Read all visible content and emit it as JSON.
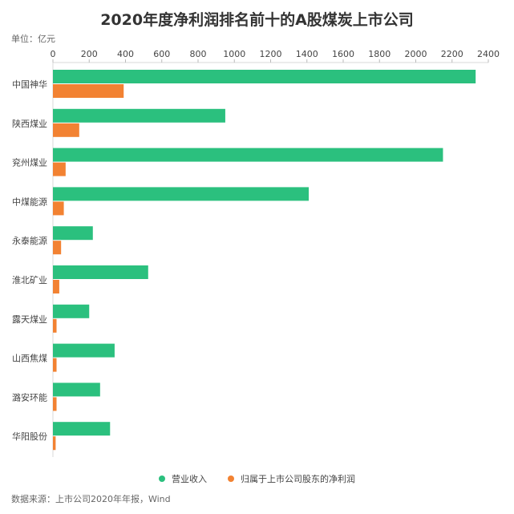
{
  "unit": "单位：亿元",
  "source": "数据来源：上市公司2020年年报，Wind",
  "colors": {
    "revenue": "#2bc07e",
    "profit": "#f28232"
  },
  "chart_data": {
    "type": "bar",
    "orientation": "horizontal",
    "title": "2020年度净利润排名前十的A股煤炭上市公司",
    "categories": [
      "中国神华",
      "陕西煤业",
      "兖州煤业",
      "中煤能源",
      "永泰能源",
      "淮北矿业",
      "露天煤业",
      "山西焦煤",
      "潞安环能",
      "华阳股份"
    ],
    "series": [
      {
        "name": "营业收入",
        "values": [
          2330,
          950,
          2150,
          1410,
          220,
          525,
          200,
          340,
          260,
          315
        ]
      },
      {
        "name": "归属于上市公司股东的净利润",
        "values": [
          390,
          145,
          70,
          60,
          45,
          35,
          20,
          20,
          20,
          15
        ]
      }
    ],
    "xlim": [
      0,
      2400
    ],
    "xticks": [
      0,
      200,
      400,
      600,
      800,
      1000,
      1200,
      1400,
      1600,
      1800,
      2000,
      2200,
      2400
    ],
    "axis_position": "top",
    "legend_position": "bottom"
  }
}
